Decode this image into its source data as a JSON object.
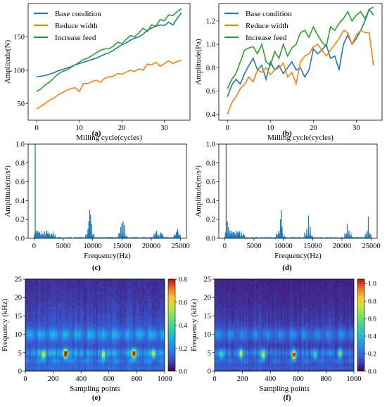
{
  "chart_data": [
    {
      "id": "a",
      "type": "line",
      "caption": "(a)",
      "xlabel": "Milling cycle(cycles)",
      "ylabel": "Amplitude(N)",
      "xlim": [
        -2,
        36
      ],
      "ylim": [
        25,
        200
      ],
      "xticks": [
        0,
        10,
        20,
        30
      ],
      "yticks": [
        50,
        100,
        150
      ],
      "legend": "top-left",
      "x": [
        0,
        1,
        2,
        3,
        4,
        5,
        6,
        7,
        8,
        9,
        10,
        11,
        12,
        13,
        14,
        15,
        16,
        17,
        18,
        19,
        20,
        21,
        22,
        23,
        24,
        25,
        26,
        27,
        28,
        29,
        30,
        31,
        32,
        33,
        34
      ],
      "series": [
        {
          "name": "Base condition",
          "color": "#1f77b4",
          "values": [
            90,
            91,
            92,
            94,
            96,
            99,
            101,
            103,
            105,
            108,
            110,
            112,
            114,
            116,
            118,
            121,
            124,
            126,
            130,
            134,
            138,
            141,
            145,
            148,
            150,
            154,
            160,
            163,
            166,
            168,
            167,
            172,
            168,
            178,
            186
          ]
        },
        {
          "name": "Reduce width",
          "color": "#ff7f0e",
          "values": [
            42,
            46,
            50,
            55,
            58,
            63,
            66,
            70,
            72,
            74,
            68,
            80,
            80,
            83,
            85,
            82,
            88,
            90,
            91,
            95,
            94,
            97,
            100,
            98,
            102,
            100,
            109,
            108,
            112,
            106,
            110,
            114,
            110,
            113,
            115
          ]
        },
        {
          "name": "Increase feed",
          "color": "#2ca02c",
          "values": [
            68,
            72,
            78,
            82,
            88,
            94,
            98,
            100,
            104,
            108,
            112,
            116,
            118,
            122,
            126,
            130,
            132,
            132,
            136,
            142,
            140,
            146,
            152,
            150,
            156,
            163,
            158,
            168,
            166,
            176,
            174,
            183,
            182,
            188,
            192
          ]
        }
      ]
    },
    {
      "id": "b",
      "type": "line",
      "caption": "(b)",
      "xlabel": "Milling cycle(cycles)",
      "ylabel": "Amplitude(Pa)",
      "xlim": [
        -2,
        36
      ],
      "ylim": [
        0.35,
        1.35
      ],
      "xticks": [
        0,
        10,
        20,
        30
      ],
      "yticks": [
        0.4,
        0.6,
        0.8,
        1.0,
        1.2
      ],
      "legend": "top-left",
      "x": [
        0,
        1,
        2,
        3,
        4,
        5,
        6,
        7,
        8,
        9,
        10,
        11,
        12,
        13,
        14,
        15,
        16,
        17,
        18,
        19,
        20,
        21,
        22,
        23,
        24,
        25,
        26,
        27,
        28,
        29,
        30,
        31,
        32,
        33,
        34
      ],
      "series": [
        {
          "name": "Base condition",
          "color": "#1f77b4",
          "values": [
            0.55,
            0.65,
            0.7,
            0.66,
            0.75,
            0.82,
            0.88,
            0.78,
            0.82,
            0.7,
            0.85,
            0.78,
            0.82,
            0.75,
            0.8,
            0.85,
            0.78,
            0.8,
            0.72,
            0.78,
            0.96,
            0.92,
            0.95,
            1.0,
            0.88,
            0.9,
            0.78,
            1.0,
            1.08,
            1.0,
            1.05,
            1.12,
            1.2,
            1.3,
            1.25
          ]
        },
        {
          "name": "Reduce width",
          "color": "#ff7f0e",
          "values": [
            0.4,
            0.5,
            0.55,
            0.62,
            0.66,
            0.72,
            0.68,
            0.78,
            0.76,
            0.8,
            0.74,
            0.78,
            0.8,
            0.84,
            0.72,
            0.76,
            0.66,
            0.85,
            0.9,
            0.92,
            0.98,
            1.0,
            0.95,
            0.9,
            0.95,
            1.0,
            1.05,
            1.12,
            1.1,
            1.0,
            1.08,
            1.12,
            1.1,
            1.1,
            0.82
          ]
        },
        {
          "name": "Increase feed",
          "color": "#2ca02c",
          "values": [
            0.62,
            0.7,
            0.75,
            0.85,
            0.95,
            0.97,
            0.98,
            0.92,
            1.0,
            0.85,
            0.82,
            0.94,
            0.88,
            1.0,
            0.9,
            0.97,
            1.0,
            1.1,
            1.12,
            1.06,
            1.15,
            1.08,
            1.02,
            0.98,
            1.15,
            1.12,
            1.18,
            1.22,
            1.28,
            1.2,
            1.25,
            1.28,
            1.22,
            1.3,
            1.32
          ]
        }
      ]
    },
    {
      "id": "c",
      "type": "bar",
      "caption": "(c)",
      "xlabel": "Frequency(Hz)",
      "ylabel": "Amplitude(m/s²)",
      "xlim": [
        -1000,
        26000
      ],
      "ylim": [
        0,
        1.0
      ],
      "xticks": [
        0,
        5000,
        10000,
        15000,
        20000,
        25000
      ],
      "yticks": [
        0.0,
        0.2,
        0.4,
        0.6,
        0.8,
        1.0
      ],
      "color": "#1f77b4",
      "peaks": [
        [
          200,
          1.0
        ],
        [
          400,
          0.08
        ],
        [
          650,
          0.06
        ],
        [
          900,
          0.05
        ],
        [
          1400,
          0.04
        ],
        [
          2300,
          0.05
        ],
        [
          2600,
          0.04
        ],
        [
          3200,
          0.03
        ],
        [
          9200,
          0.1
        ],
        [
          9350,
          0.18
        ],
        [
          9500,
          0.3
        ],
        [
          9650,
          0.25
        ],
        [
          9800,
          0.15
        ],
        [
          14800,
          0.12
        ],
        [
          15000,
          0.16
        ],
        [
          15200,
          0.18
        ],
        [
          15400,
          0.14
        ],
        [
          20900,
          0.08
        ],
        [
          21600,
          0.06
        ],
        [
          24300,
          0.07
        ],
        [
          24500,
          0.1
        ]
      ]
    },
    {
      "id": "d",
      "type": "bar",
      "caption": "(d)",
      "xlabel": "Frequency(Hz)",
      "ylabel": "Amplitude(m/s²)",
      "xlim": [
        -1000,
        26000
      ],
      "ylim": [
        0,
        1.0
      ],
      "xticks": [
        0,
        5000,
        10000,
        15000,
        20000,
        25000
      ],
      "yticks": [
        0.0,
        0.2,
        0.4,
        0.6,
        0.8,
        1.0
      ],
      "color": "#1f77b4",
      "peaks": [
        [
          250,
          1.0
        ],
        [
          450,
          0.18
        ],
        [
          650,
          0.12
        ],
        [
          900,
          0.08
        ],
        [
          1300,
          0.06
        ],
        [
          2300,
          0.05
        ],
        [
          2800,
          0.04
        ],
        [
          9200,
          0.08
        ],
        [
          9500,
          0.2
        ],
        [
          9650,
          0.3
        ],
        [
          9800,
          0.12
        ],
        [
          14000,
          0.1
        ],
        [
          14300,
          0.24
        ],
        [
          14600,
          0.12
        ],
        [
          20900,
          0.15
        ],
        [
          21200,
          0.08
        ],
        [
          24300,
          0.08
        ],
        [
          24500,
          0.23
        ]
      ]
    },
    {
      "id": "e",
      "type": "heatmap",
      "caption": "(e)",
      "xlabel": "Sampling points",
      "ylabel": "Frequency (kHz)",
      "xlim": [
        0,
        1000
      ],
      "ylim": [
        0,
        25
      ],
      "xticks": [
        0,
        200,
        400,
        600,
        800,
        1000
      ],
      "yticks": [
        0,
        5,
        10,
        15,
        20,
        25
      ],
      "colorbar_range": [
        0,
        0.8
      ],
      "colorbar_ticks": [
        0.0,
        0.2,
        0.4,
        0.6,
        0.8
      ],
      "bands_khz": [
        10,
        5,
        3,
        1
      ],
      "hotspots": [
        [
          290,
          4.8,
          0.8
        ],
        [
          780,
          4.8,
          0.8
        ],
        [
          130,
          4.5,
          0.45
        ],
        [
          560,
          4.5,
          0.4
        ],
        [
          920,
          4.8,
          0.45
        ]
      ]
    },
    {
      "id": "f",
      "type": "heatmap",
      "caption": "(f)",
      "xlabel": "Sampling points",
      "ylabel": "Frequency (kHz)",
      "xlim": [
        0,
        1000
      ],
      "ylim": [
        0,
        25
      ],
      "xticks": [
        0,
        200,
        400,
        600,
        800,
        1000
      ],
      "yticks": [
        0,
        5,
        10,
        15,
        20,
        25
      ],
      "colorbar_range": [
        0,
        1.05
      ],
      "colorbar_ticks": [
        0.0,
        0.2,
        0.4,
        0.6,
        0.8,
        1.0
      ],
      "bands_khz": [
        10,
        5,
        3,
        1
      ],
      "hotspots": [
        [
          570,
          4.5,
          1.0
        ],
        [
          350,
          4.5,
          0.65
        ],
        [
          190,
          4.8,
          0.6
        ],
        [
          900,
          4.8,
          0.45
        ],
        [
          50,
          4.5,
          0.35
        ],
        [
          720,
          4.5,
          0.35
        ]
      ]
    }
  ]
}
